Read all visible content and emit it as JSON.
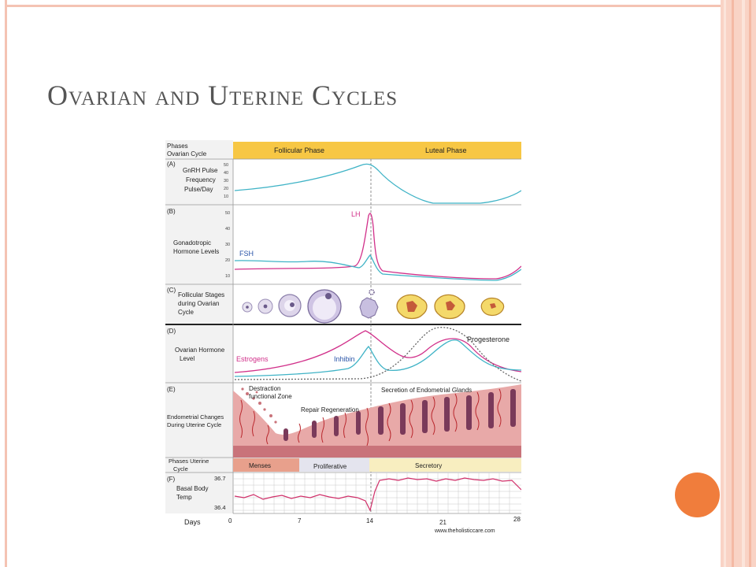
{
  "slide": {
    "title": "Ovarian and Uterine Cycles",
    "accent_color": "#f07d3c",
    "frame_color": "#f4c3b3"
  },
  "figure": {
    "phases_label": [
      "Phases",
      "Ovarian Cycle"
    ],
    "follicular_phase": "Follicular Phase",
    "luteal_phase": "Luteal Phase",
    "panel_a": {
      "letter": "(A)",
      "label": [
        "GnRH Pulse",
        "Frequency",
        "Pulse/Day"
      ],
      "ticks": [
        "50",
        "40",
        "30",
        "20",
        "10"
      ]
    },
    "panel_b": {
      "letter": "(B)",
      "label": [
        "Gonadotropic",
        "Hormone Levels"
      ],
      "ticks": [
        "50",
        "40",
        "30",
        "20",
        "10"
      ],
      "lh": "LH",
      "fsh": "FSH"
    },
    "panel_c": {
      "letter": "(C)",
      "label": [
        "Follicular Stages",
        "during Ovarian",
        "Cycle"
      ]
    },
    "panel_d": {
      "letter": "(D)",
      "label": [
        "Ovarian Hormone",
        "Level"
      ],
      "estrogens": "Estrogens",
      "inhibin": "Inhibin",
      "progesterone": "Progesterone"
    },
    "panel_e": {
      "letter": "(E)",
      "label": [
        "Endometrial Changes",
        "During Uterine Cycle"
      ],
      "destraction": [
        "Destraction",
        "functional Zone"
      ],
      "repair": "Repair Regeneration",
      "secretion": "Secretion of Endometrial Glands"
    },
    "uterine_phases": {
      "label": [
        "Phases Uterine",
        "Cycle"
      ],
      "menses": "Menses",
      "proliferative": "Proliferative",
      "secretory": "Secretory"
    },
    "panel_f": {
      "letter": "(F)",
      "label": [
        "Basal Body",
        "Temp"
      ],
      "top_tick": "36.7",
      "bottom_tick": "36.4"
    },
    "days": {
      "label": "Days",
      "ticks": [
        "0",
        "7",
        "14",
        "21",
        "28"
      ]
    },
    "credit": "www.theholisticcare.com",
    "colors": {
      "gnrh": "#3fb3c6",
      "lh": "#d1308a",
      "fsh": "#3fb3c6",
      "estrogens": "#d1308a",
      "inhibin": "#3fb3c6",
      "progesterone": "#666666",
      "temp": "#d1306a",
      "phase_bar": "#f7c744",
      "menses": "#e8a08c",
      "proliferative": "#e4e4ee",
      "secretory": "#f8eec0"
    }
  }
}
